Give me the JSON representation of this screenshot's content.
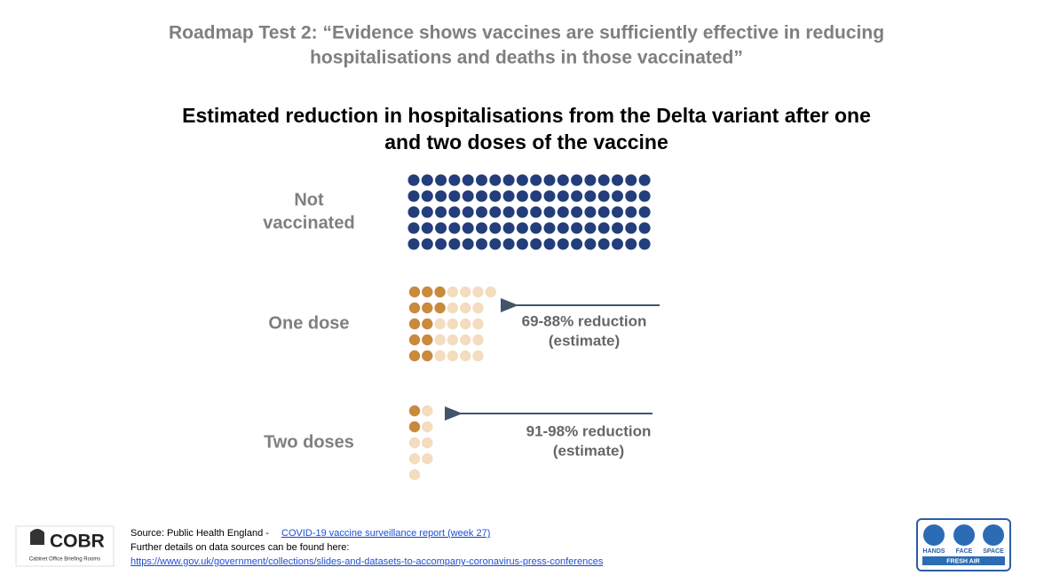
{
  "header": {
    "title_lines": [
      "Roadmap Test 2: “Evidence shows vaccines are sufficiently effective in reducing",
      "hospitalisations and deaths in those vaccinated”"
    ],
    "subtitle_lines": [
      "Estimated reduction in hospitalisations from the Delta variant after one",
      "and two doses of the vaccine"
    ]
  },
  "pictogram": {
    "filled_color": "#c98a3e",
    "empty_color": "#f3dcc0",
    "groups": [
      {
        "label_lines": [
          "Not",
          "vaccinated"
        ],
        "filled_color": "#233e7b",
        "rows": [
          [
            18,
            0
          ],
          [
            18,
            0
          ],
          [
            18,
            0
          ],
          [
            18,
            0
          ],
          [
            18,
            0
          ]
        ]
      },
      {
        "label_lines": [
          "One dose"
        ],
        "annotation_lines": [
          "69-88% reduction",
          "(estimate)"
        ],
        "rows": [
          [
            3,
            4
          ],
          [
            3,
            3
          ],
          [
            2,
            4
          ],
          [
            2,
            4
          ],
          [
            2,
            4
          ]
        ]
      },
      {
        "label_lines": [
          "Two doses"
        ],
        "annotation_lines": [
          "91-98% reduction",
          "(estimate)"
        ],
        "rows": [
          [
            1,
            1
          ],
          [
            1,
            1
          ],
          [
            0,
            2
          ],
          [
            0,
            2
          ],
          [
            0,
            1
          ]
        ]
      }
    ]
  },
  "footer": {
    "source": "Source: Public Health England -",
    "source_link": "COVID-19 vaccine surveillance report (week 27)",
    "details": "Further details on data sources can be found here:",
    "url": "https://www.gov.uk/government/collections/slides-and-datasets-to-accompany-coronavirus-press-conferences"
  },
  "logos": {
    "cobr": "COBR",
    "cobr_sub": "Cabinet Office Briefing Rooms",
    "hands": "HANDS",
    "face": "FACE",
    "space": "SPACE",
    "fresh_air": "FRESH AIR"
  }
}
